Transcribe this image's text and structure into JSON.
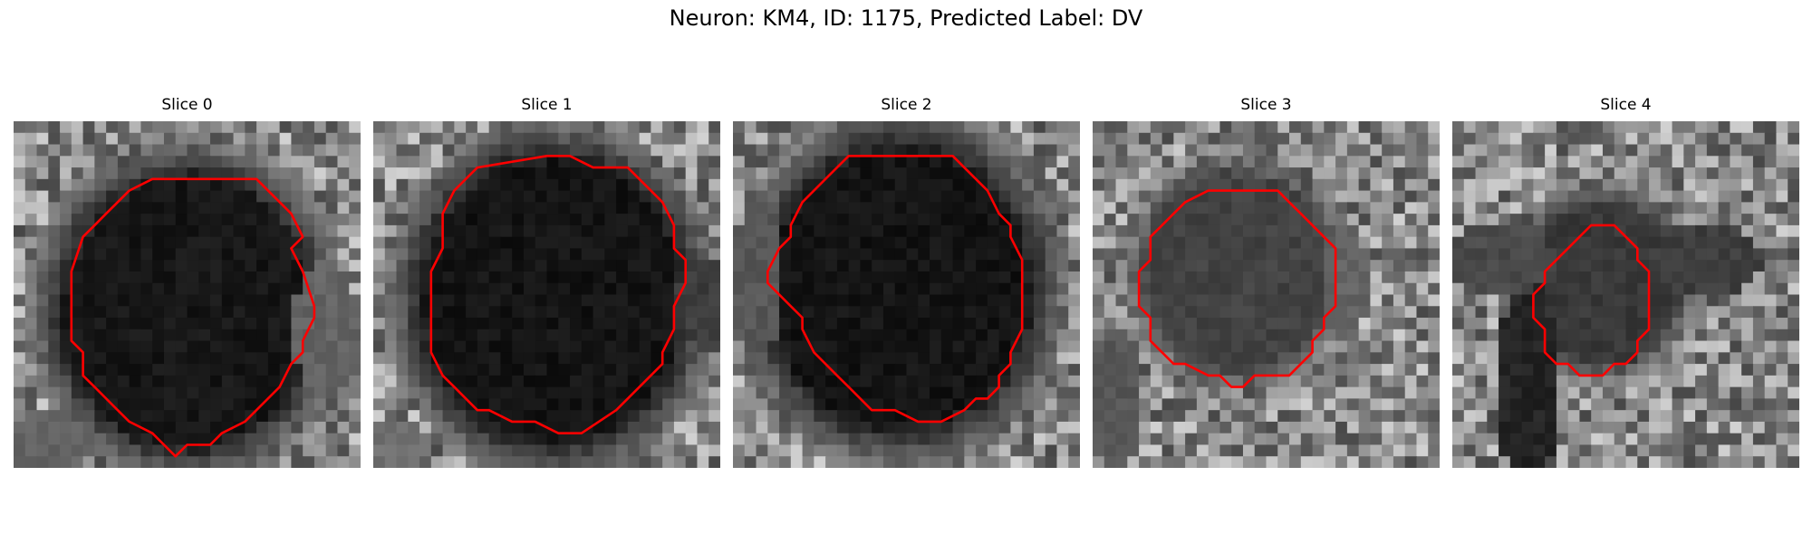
{
  "figure": {
    "title": "Neuron: KM4, ID: 1175, Predicted Label: DV",
    "contour_color": "#ff0000"
  },
  "panels": [
    {
      "title": "Slice 0"
    },
    {
      "title": "Slice 1"
    },
    {
      "title": "Slice 2"
    },
    {
      "title": "Slice 3"
    },
    {
      "title": "Slice 4"
    }
  ]
}
